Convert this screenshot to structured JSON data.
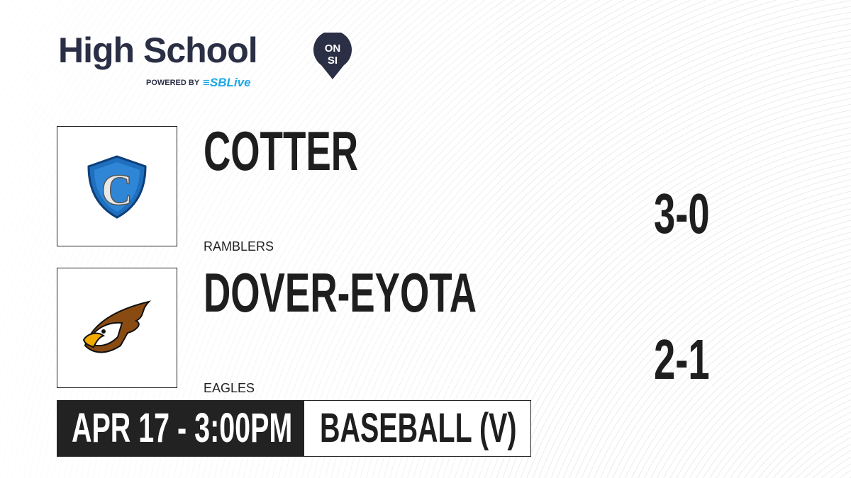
{
  "brand": {
    "title": "High School",
    "badge": "ON SI",
    "powered_by": "POWERED BY",
    "partner": "SBLive"
  },
  "teams": [
    {
      "name": "COTTER",
      "mascot": "RAMBLERS",
      "record": "3-0",
      "logo_icon": "cotter-shield-logo",
      "logo_color": "#1f6fbf"
    },
    {
      "name": "DOVER-EYOTA",
      "mascot": "EAGLES",
      "record": "2-1",
      "logo_icon": "eagle-head-logo",
      "logo_color": "#f2a900"
    }
  ],
  "game": {
    "datetime": "APR 17 - 3:00PM",
    "sport": "BASEBALL (V)"
  }
}
